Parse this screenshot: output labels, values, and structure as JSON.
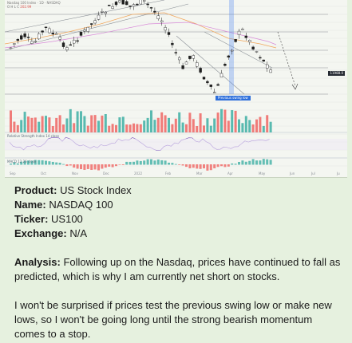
{
  "chart": {
    "header_line1": "Nasdaq 100 Index · 1D · NASDAQ",
    "header_line2": "O H L C",
    "header_value": "202.99",
    "price_tag": "11988.0",
    "low_tag": "Previous swing low",
    "rsi_label": "Relative Strength Index 14 close",
    "macd_label": "MACD 12 26 close",
    "x_labels": [
      "Sep",
      "Oct",
      "Nov",
      "Dec",
      "2022",
      "Feb",
      "Mar",
      "Apr",
      "May",
      "Jun",
      "Jul",
      "Ju"
    ],
    "up_color": "#26a69a",
    "down_color": "#ef5350",
    "marker_color": "#5b8ff0"
  },
  "post": {
    "product_label": "Product:",
    "product_value": "US Stock Index",
    "name_label": "Name:",
    "name_value": "NASDAQ 100",
    "ticker_label": "Ticker:",
    "ticker_value": "US100",
    "exchange_label": "Exchange:",
    "exchange_value": "N/A",
    "analysis_label": "Analysis:",
    "analysis_text": "Following up on the Nasdaq, prices have continued to fall as predicted, which is why I am currently net short on stocks.",
    "paragraph_2": "I won't be surprised if prices test the previous swing low or make new lows, so I won't be going long until the strong bearish momentum comes to a stop."
  }
}
